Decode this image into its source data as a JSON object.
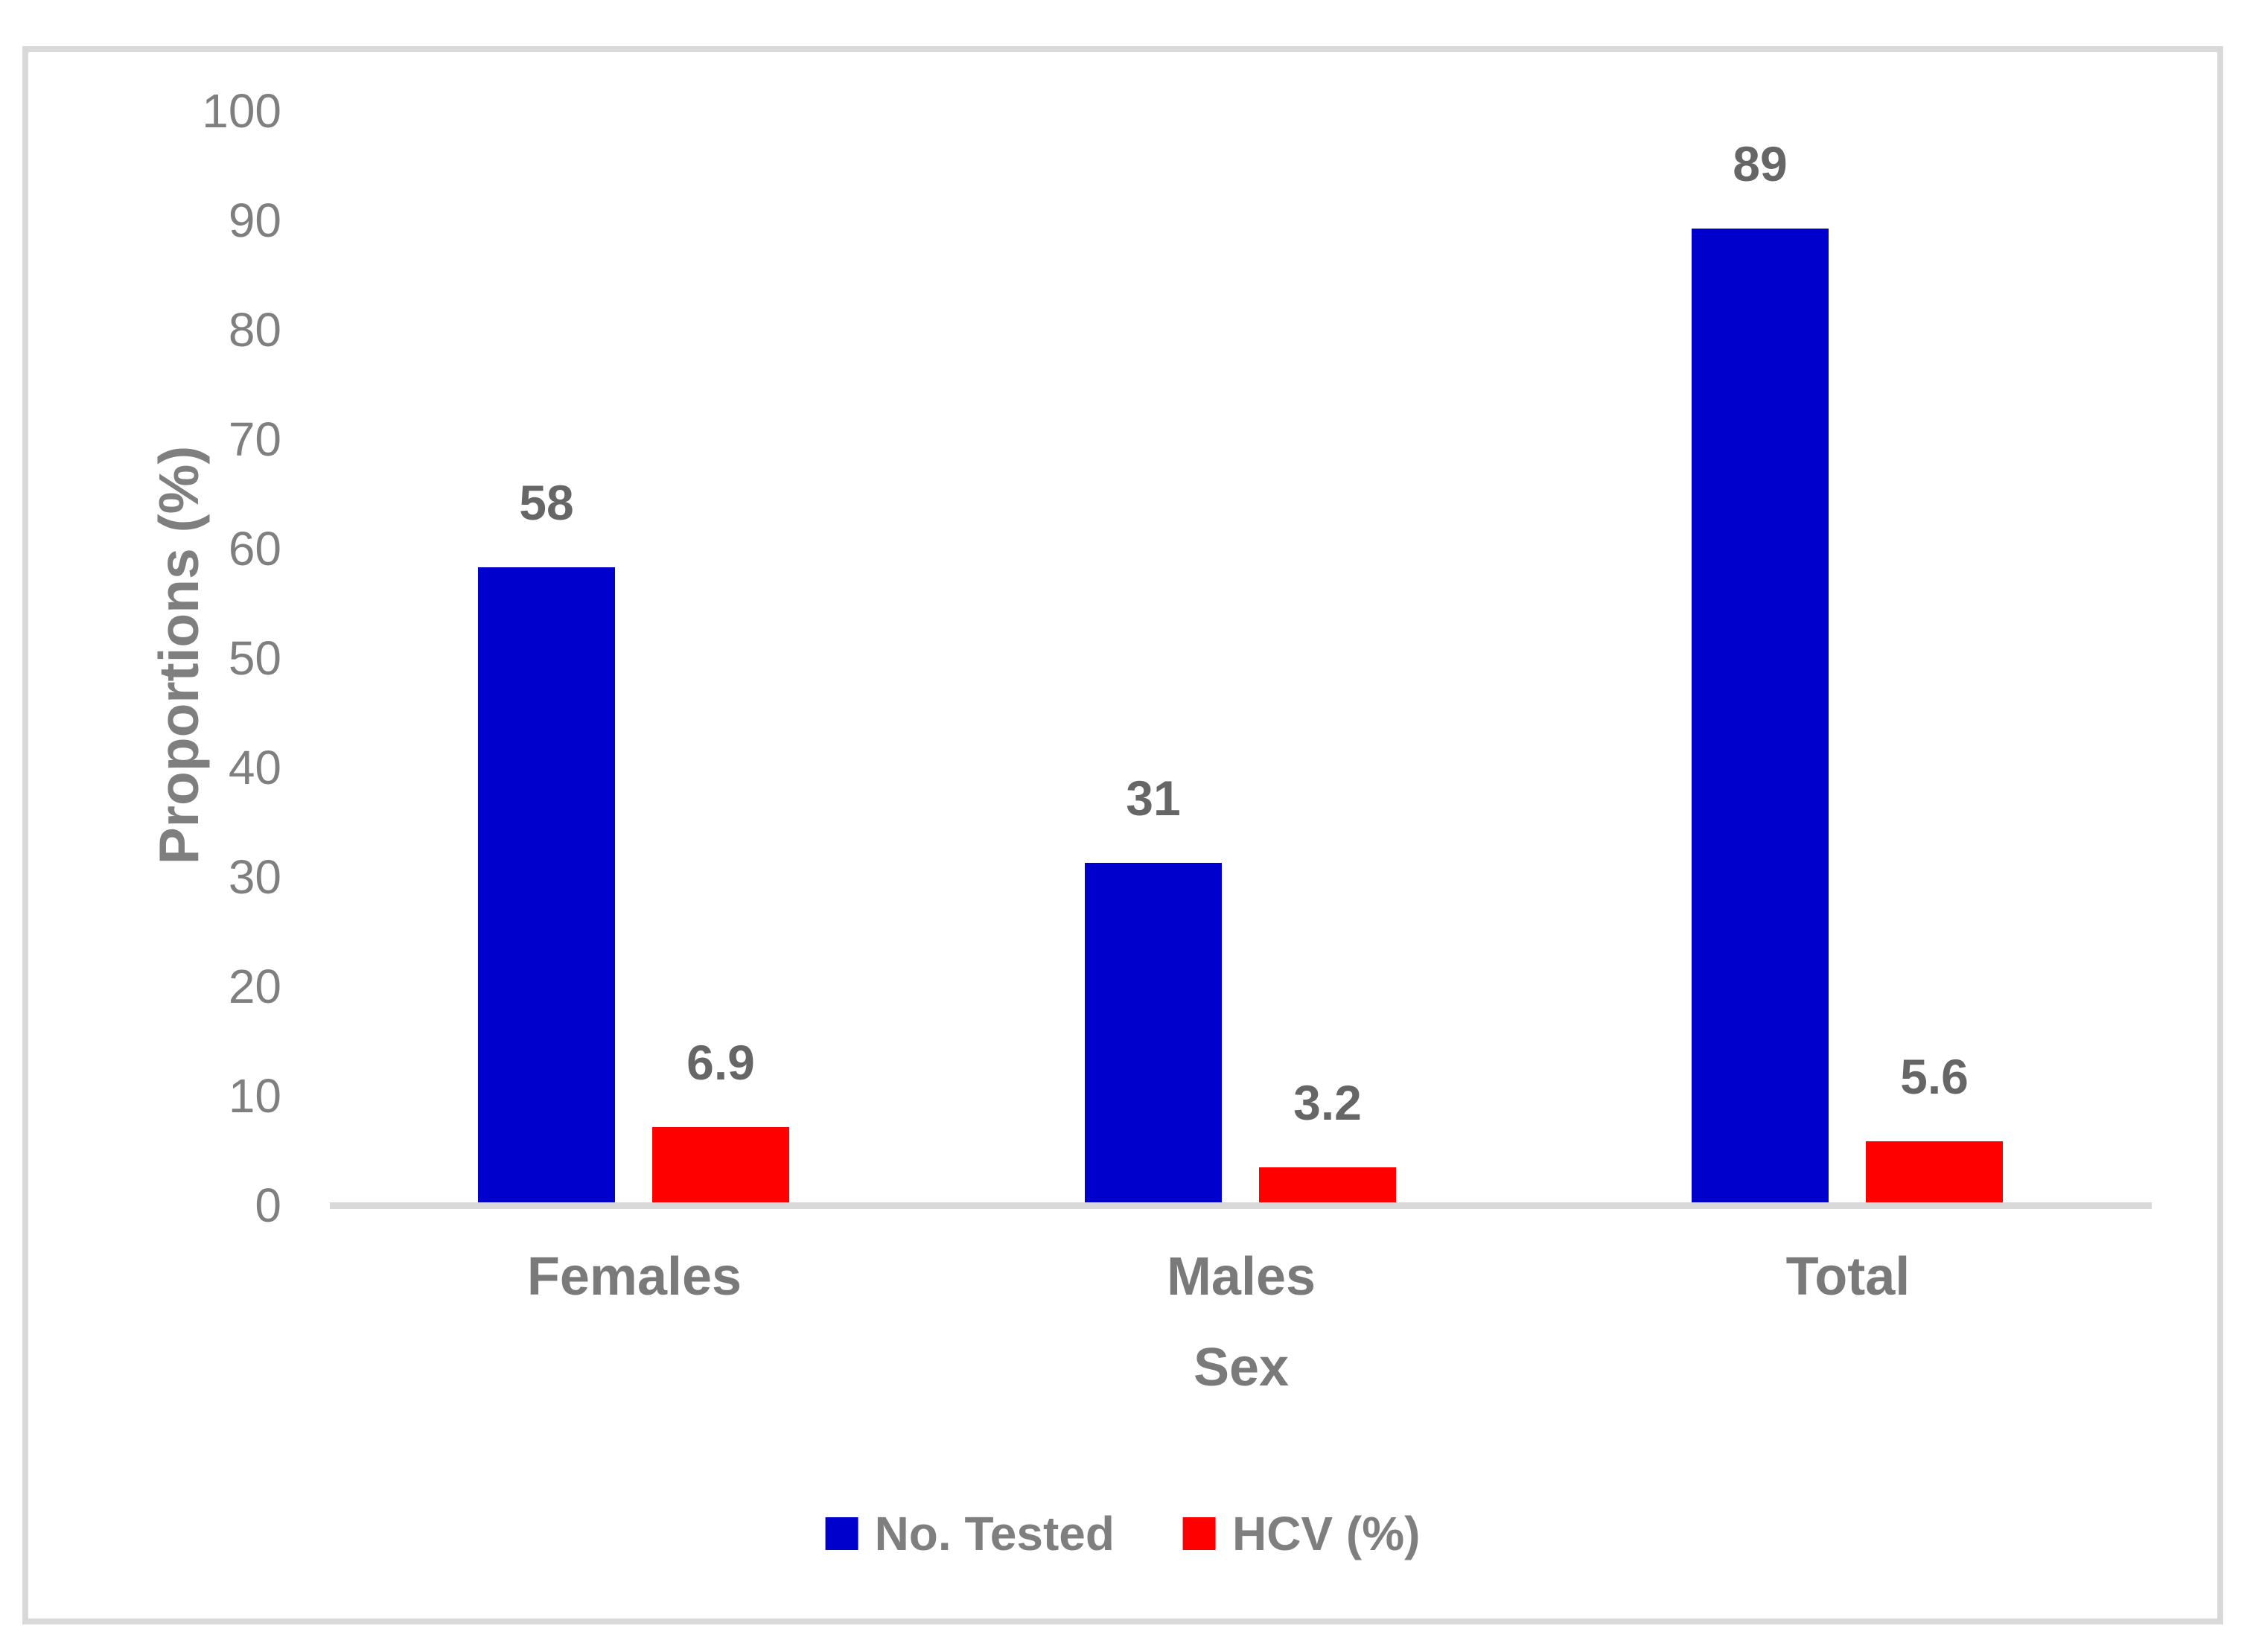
{
  "chart_data": {
    "type": "bar",
    "categories": [
      "Females",
      "Males",
      "Total"
    ],
    "series": [
      {
        "name": "No. Tested",
        "color": "#0000CC",
        "values": [
          58,
          31,
          89
        ]
      },
      {
        "name": "HCV (%)",
        "color": "#FF0000",
        "values": [
          6.9,
          3.2,
          5.6
        ]
      }
    ],
    "data_labels": {
      "No. Tested": [
        "58",
        "31",
        "89"
      ],
      "HCV (%)": [
        "6.9",
        "3.2",
        "5.6"
      ]
    },
    "title": "",
    "xlabel": "Sex",
    "ylabel": "Proportions (%)",
    "ylim": [
      0,
      100
    ],
    "ytick_step": 10,
    "ytick_labels": [
      "0",
      "10",
      "20",
      "30",
      "40",
      "50",
      "60",
      "70",
      "80",
      "90",
      "100"
    ],
    "grid": false,
    "legend_position": "bottom",
    "axis_line_color": "#D9D9D9",
    "tick_text_color": "#7F7F7F",
    "data_label_color": "#666666"
  }
}
